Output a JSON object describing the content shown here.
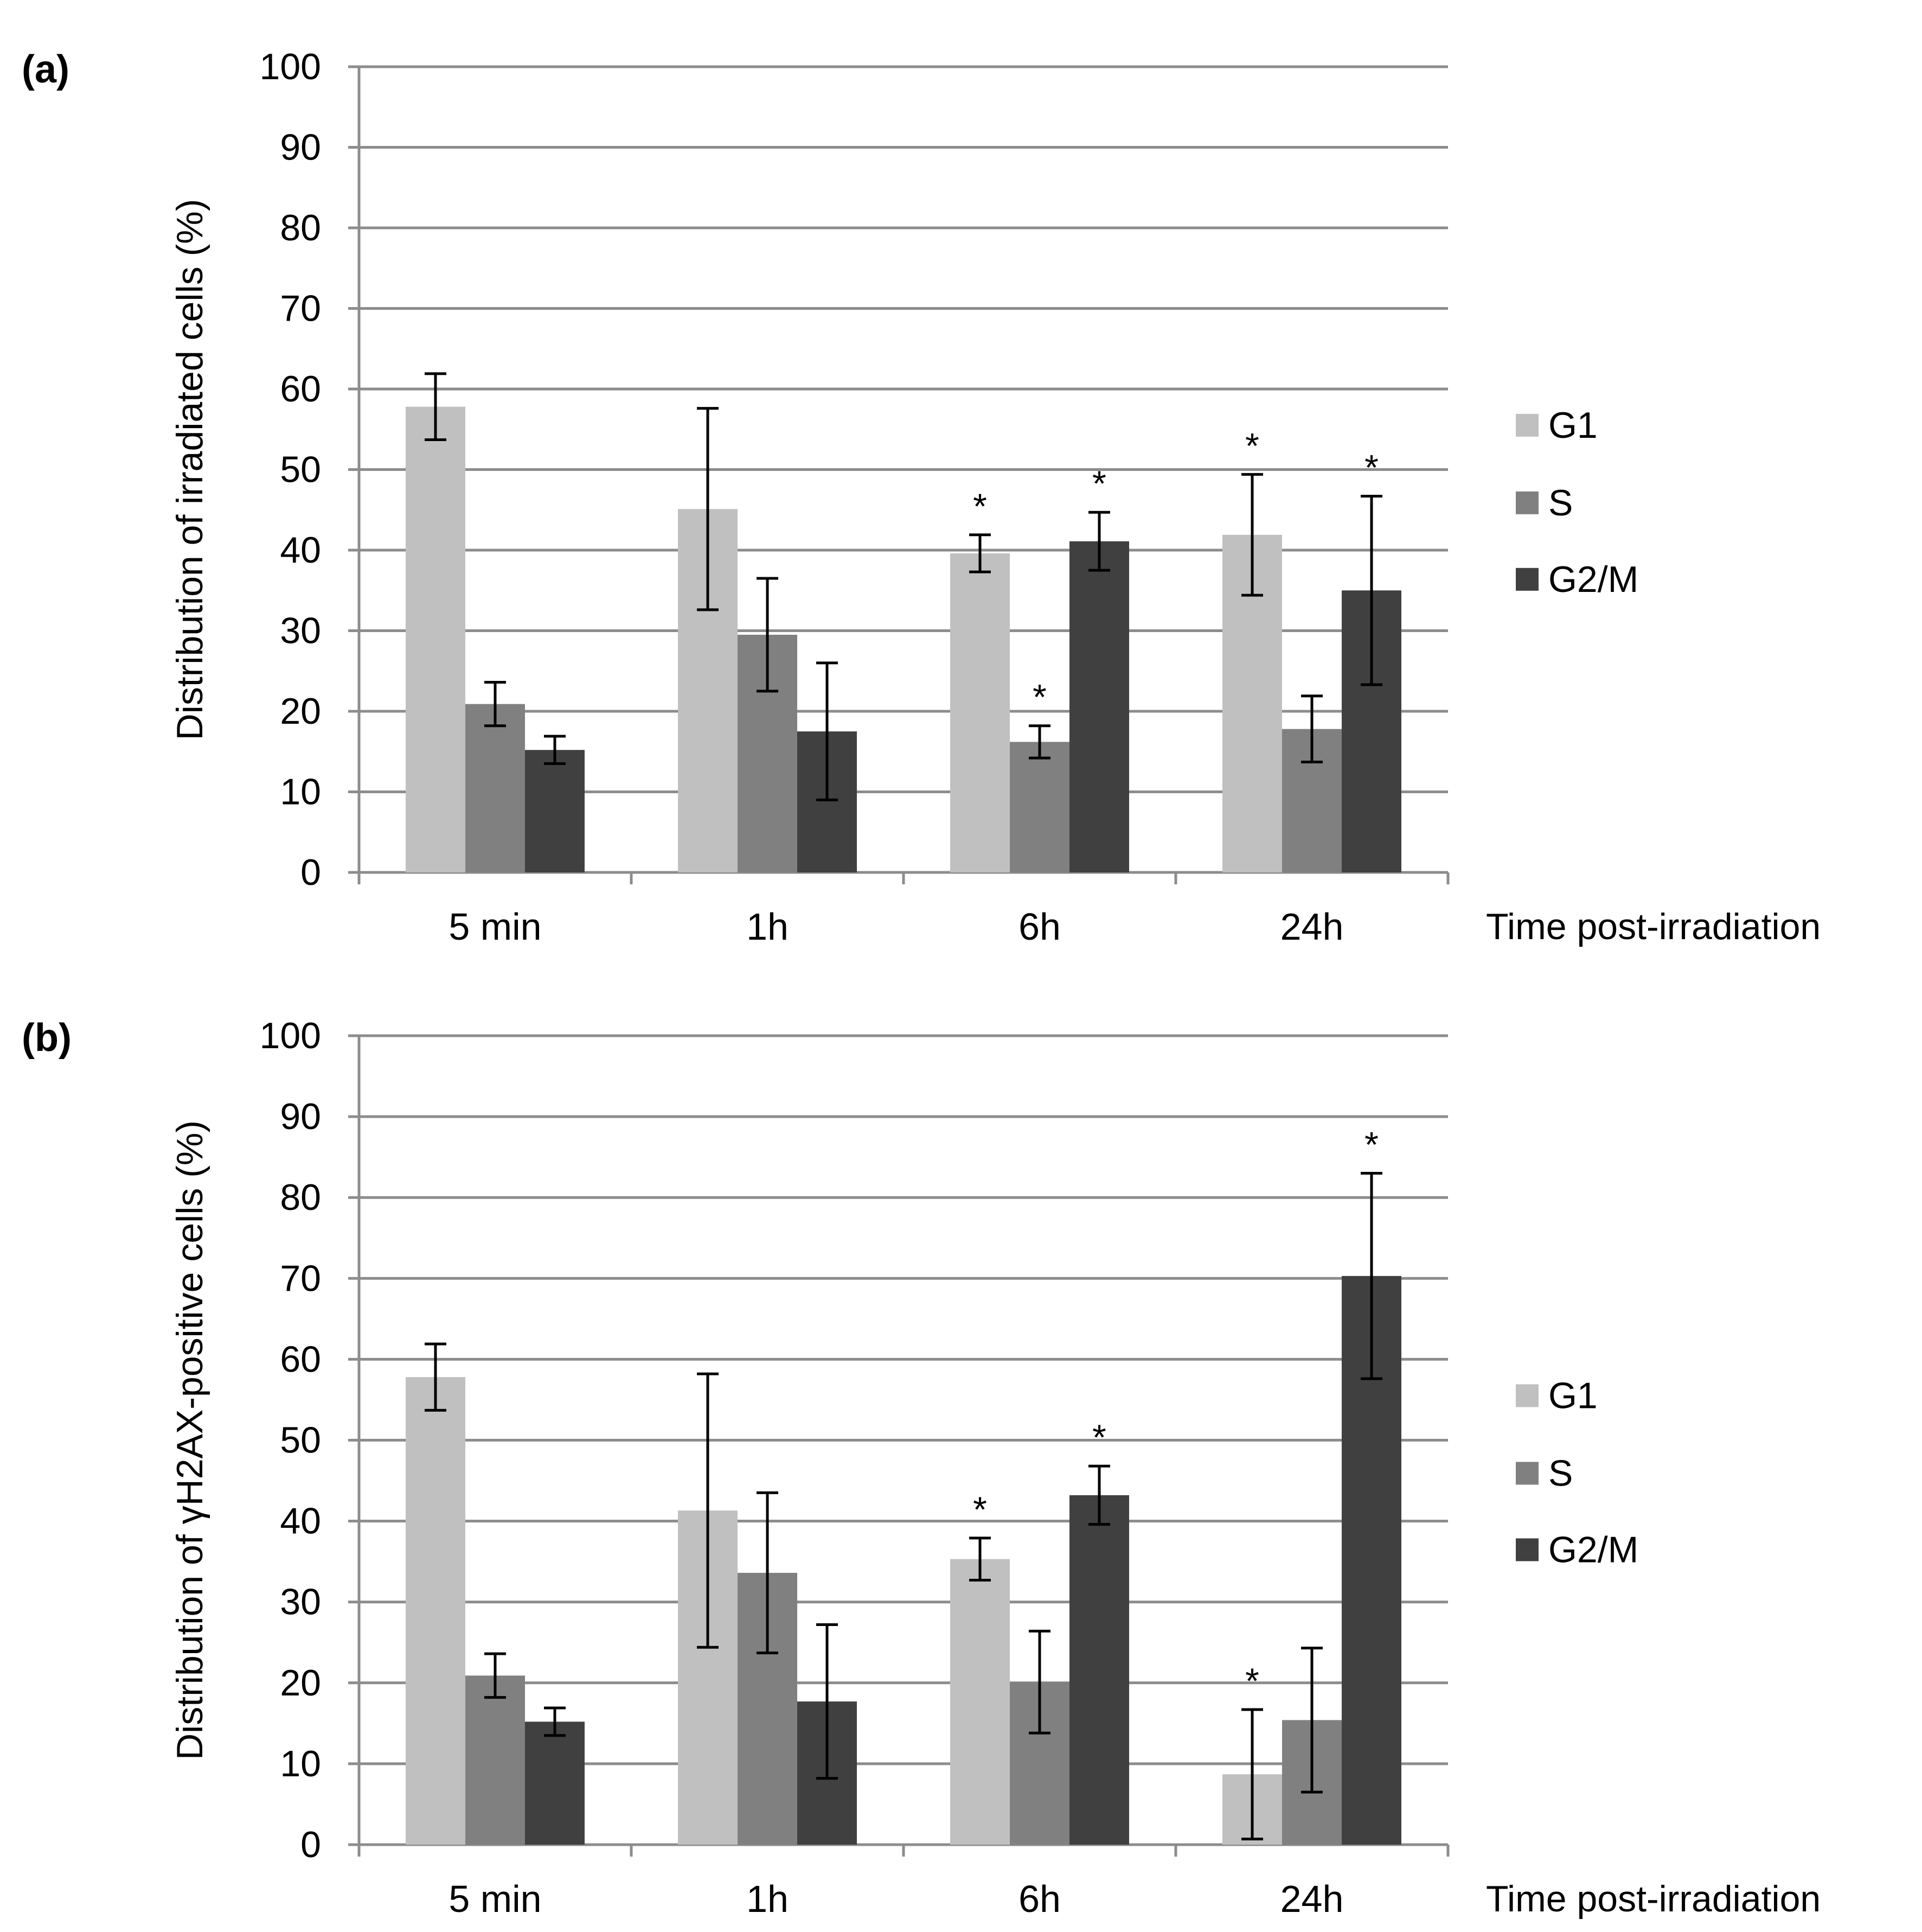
{
  "chart_data": [
    {
      "type": "bar",
      "panel_label": "(a)",
      "title": "",
      "xlabel": "Time post-irradiation",
      "ylabel": "Distribution of irradiated cells (%)",
      "ylim": [
        0,
        100
      ],
      "yticks": [
        "0",
        "10",
        "20",
        "30",
        "40",
        "50",
        "60",
        "70",
        "80",
        "90",
        "100"
      ],
      "grid": true,
      "legend_position": "right",
      "categories": [
        "5 min",
        "1h",
        "6h",
        "24h"
      ],
      "series": [
        {
          "name": "G1",
          "color": "#c0c0c0",
          "values": [
            57.8,
            45.1,
            39.6,
            41.9
          ],
          "errors": [
            4.1,
            12.5,
            2.3,
            7.5
          ],
          "significant": [
            false,
            false,
            true,
            true
          ]
        },
        {
          "name": "S",
          "color": "#808080",
          "values": [
            20.9,
            29.5,
            16.2,
            17.8
          ],
          "errors": [
            2.7,
            7.0,
            2.0,
            4.1
          ],
          "significant": [
            false,
            false,
            true,
            false
          ]
        },
        {
          "name": "G2/M",
          "color": "#404040",
          "values": [
            15.2,
            17.5,
            41.1,
            35.0
          ],
          "errors": [
            1.7,
            8.5,
            3.6,
            11.7
          ],
          "significant": [
            false,
            false,
            true,
            true
          ]
        }
      ],
      "significance_marker": "*"
    },
    {
      "type": "bar",
      "panel_label": "(b)",
      "title": "",
      "xlabel": "Time post-irradiation",
      "ylabel": "Distribution of γH2AX-positive cells (%)",
      "ylim": [
        0,
        100
      ],
      "yticks": [
        "0",
        "10",
        "20",
        "30",
        "40",
        "50",
        "60",
        "70",
        "80",
        "90",
        "100"
      ],
      "grid": true,
      "legend_position": "right",
      "categories": [
        "5 min",
        "1h",
        "6h",
        "24h"
      ],
      "series": [
        {
          "name": "G1",
          "color": "#c0c0c0",
          "values": [
            57.8,
            41.3,
            35.3,
            8.7
          ],
          "errors": [
            4.1,
            16.9,
            2.6,
            8.0
          ],
          "significant": [
            false,
            false,
            true,
            true
          ]
        },
        {
          "name": "S",
          "color": "#808080",
          "values": [
            20.9,
            33.6,
            20.1,
            15.4
          ],
          "errors": [
            2.7,
            9.9,
            6.3,
            8.9
          ],
          "significant": [
            false,
            false,
            false,
            false
          ]
        },
        {
          "name": "G2/M",
          "color": "#404040",
          "values": [
            15.2,
            17.7,
            43.2,
            70.3
          ],
          "errors": [
            1.7,
            9.5,
            3.6,
            12.7
          ],
          "significant": [
            false,
            false,
            true,
            true
          ]
        }
      ],
      "significance_marker": "*"
    }
  ]
}
